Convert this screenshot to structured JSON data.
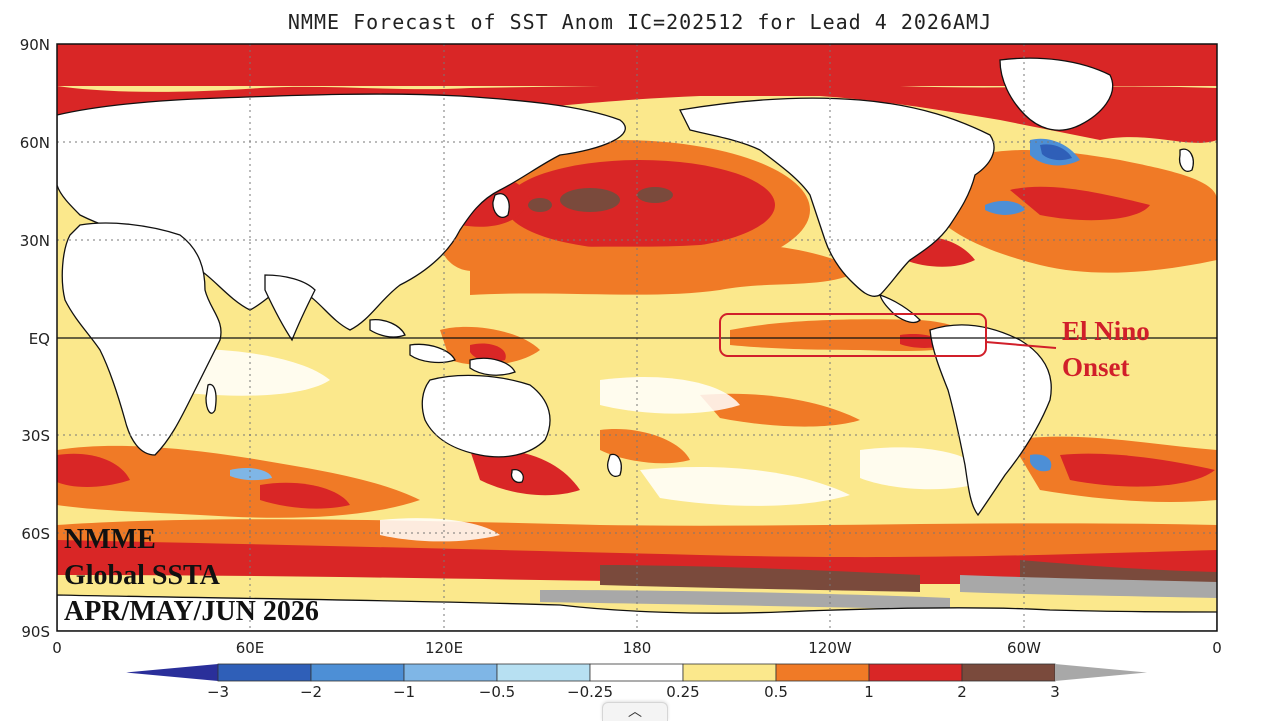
{
  "title": "NMME Forecast of SST Anom IC=202512 for Lead 4 2026AMJ",
  "lat_labels": [
    "90N",
    "60N",
    "30N",
    "EQ",
    "30S",
    "60S",
    "90S"
  ],
  "lon_labels": [
    "0",
    "60E",
    "120E",
    "180",
    "120W",
    "60W",
    "0"
  ],
  "overlay_lines": [
    "NMME",
    "Global SSTA",
    "APR/MAY/JUN 2026"
  ],
  "annotation_lines": [
    "El Nino",
    "Onset"
  ],
  "colorbar": {
    "labels": [
      "−3",
      "−2",
      "−1",
      "−0.5",
      "−0.25",
      "0.25",
      "0.5",
      "1",
      "2",
      "3"
    ],
    "colors": [
      "#2a2f9a",
      "#2f5fb8",
      "#4d8fd6",
      "#7fb6e6",
      "#b7e0f2",
      "#ffffff",
      "#fbe88c",
      "#f07a26",
      "#d92626",
      "#7a4a3c",
      "#a8a8a8"
    ]
  },
  "colors": {
    "warm_light": "#fbe88c",
    "warm": "#f07a26",
    "hot": "#d92626",
    "very_hot": "#7a4a3c",
    "cool": "#4d8fd6",
    "annotation": "#d11f2a"
  },
  "collapse_icon": "chevron-up-icon",
  "collapse_glyph": "︿"
}
